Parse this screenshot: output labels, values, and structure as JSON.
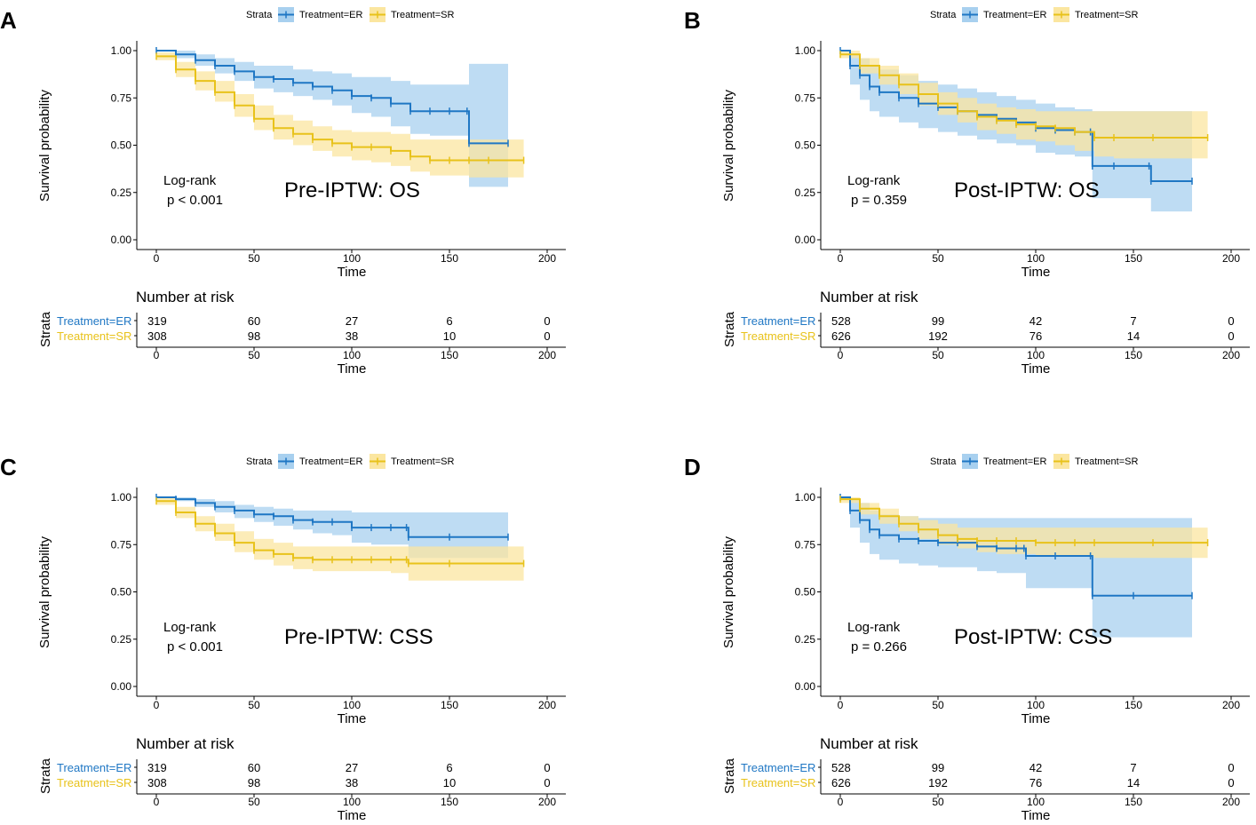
{
  "colors": {
    "er": "#1f77c4",
    "sr": "#e8c21a",
    "er_band": "#a8d0ef",
    "sr_band": "#fbe6a0"
  },
  "legend": {
    "title": "Strata",
    "er": "Treatment=ER",
    "sr": "Treatment=SR"
  },
  "risk_table": {
    "title": "Number at risk",
    "ylabel": "Strata",
    "xlabel": "Time"
  },
  "chart_data": [
    {
      "panel": "A",
      "type": "line",
      "title": "Pre-IPTW: OS",
      "annotation": {
        "line1": "Log-rank",
        "line2": "p < 0.001"
      },
      "xlabel": "Time",
      "ylabel": "Survival probability",
      "xlim": [
        0,
        200
      ],
      "ylim": [
        0,
        1
      ],
      "x_ticks": [
        "0",
        "50",
        "100",
        "150",
        "200"
      ],
      "y_ticks": [
        "0.00",
        "0.25",
        "0.50",
        "0.75",
        "1.00"
      ],
      "series": [
        {
          "name": "Treatment=ER",
          "x": [
            0,
            10,
            20,
            30,
            40,
            50,
            60,
            70,
            80,
            90,
            100,
            110,
            120,
            130,
            140,
            150,
            159,
            160,
            180
          ],
          "y": [
            1.0,
            0.98,
            0.95,
            0.92,
            0.89,
            0.86,
            0.85,
            0.83,
            0.81,
            0.79,
            0.76,
            0.75,
            0.72,
            0.68,
            0.68,
            0.68,
            0.68,
            0.51,
            0.51
          ],
          "lower": [
            1.0,
            0.96,
            0.92,
            0.88,
            0.84,
            0.8,
            0.78,
            0.76,
            0.74,
            0.71,
            0.67,
            0.65,
            0.6,
            0.56,
            0.55,
            0.55,
            0.55,
            0.28,
            0.28
          ],
          "upper": [
            1.0,
            1.0,
            0.98,
            0.96,
            0.94,
            0.92,
            0.92,
            0.9,
            0.89,
            0.88,
            0.86,
            0.86,
            0.84,
            0.82,
            0.82,
            0.82,
            0.82,
            0.93,
            0.93
          ]
        },
        {
          "name": "Treatment=SR",
          "x": [
            0,
            10,
            20,
            30,
            40,
            50,
            60,
            70,
            80,
            90,
            100,
            110,
            120,
            130,
            140,
            150,
            160,
            170,
            188
          ],
          "y": [
            0.97,
            0.9,
            0.84,
            0.78,
            0.71,
            0.64,
            0.59,
            0.56,
            0.53,
            0.51,
            0.49,
            0.49,
            0.47,
            0.44,
            0.42,
            0.42,
            0.42,
            0.42,
            0.42
          ],
          "lower": [
            0.95,
            0.86,
            0.79,
            0.73,
            0.65,
            0.58,
            0.53,
            0.5,
            0.47,
            0.44,
            0.42,
            0.41,
            0.39,
            0.36,
            0.34,
            0.34,
            0.33,
            0.33,
            0.33
          ],
          "upper": [
            0.99,
            0.94,
            0.89,
            0.84,
            0.77,
            0.71,
            0.66,
            0.63,
            0.6,
            0.58,
            0.57,
            0.57,
            0.56,
            0.53,
            0.53,
            0.53,
            0.53,
            0.53,
            0.53
          ]
        }
      ],
      "risk": {
        "times": [
          "0",
          "50",
          "100",
          "150",
          "200"
        ],
        "er": [
          "319",
          "60",
          "27",
          "6",
          "0"
        ],
        "sr": [
          "308",
          "98",
          "38",
          "10",
          "0"
        ]
      }
    },
    {
      "panel": "B",
      "type": "line",
      "title": "Post-IPTW: OS",
      "annotation": {
        "line1": "Log-rank",
        "line2": "p = 0.359"
      },
      "xlabel": "Time",
      "ylabel": "Survival probability",
      "xlim": [
        0,
        200
      ],
      "ylim": [
        0,
        1
      ],
      "x_ticks": [
        "0",
        "50",
        "100",
        "150",
        "200"
      ],
      "y_ticks": [
        "0.00",
        "0.25",
        "0.50",
        "0.75",
        "1.00"
      ],
      "series": [
        {
          "name": "Treatment=ER",
          "x": [
            0,
            5,
            10,
            15,
            20,
            30,
            40,
            50,
            60,
            70,
            80,
            90,
            100,
            110,
            120,
            128,
            129,
            140,
            158,
            159,
            180
          ],
          "y": [
            1.0,
            0.92,
            0.87,
            0.81,
            0.78,
            0.75,
            0.72,
            0.7,
            0.68,
            0.66,
            0.64,
            0.62,
            0.59,
            0.58,
            0.57,
            0.57,
            0.39,
            0.39,
            0.39,
            0.31,
            0.31
          ],
          "lower": [
            1.0,
            0.82,
            0.74,
            0.68,
            0.65,
            0.62,
            0.59,
            0.57,
            0.55,
            0.53,
            0.51,
            0.5,
            0.46,
            0.45,
            0.44,
            0.44,
            0.22,
            0.22,
            0.22,
            0.15,
            0.15
          ],
          "upper": [
            1.0,
            0.98,
            0.96,
            0.92,
            0.9,
            0.87,
            0.84,
            0.82,
            0.8,
            0.78,
            0.76,
            0.74,
            0.72,
            0.7,
            0.69,
            0.69,
            0.68,
            0.68,
            0.68,
            0.68,
            0.68
          ]
        },
        {
          "name": "Treatment=SR",
          "x": [
            0,
            10,
            20,
            30,
            40,
            50,
            60,
            70,
            80,
            90,
            100,
            110,
            120,
            130,
            140,
            160,
            188
          ],
          "y": [
            0.98,
            0.92,
            0.87,
            0.82,
            0.77,
            0.72,
            0.68,
            0.65,
            0.63,
            0.61,
            0.6,
            0.59,
            0.57,
            0.54,
            0.54,
            0.54,
            0.54
          ],
          "lower": [
            0.96,
            0.88,
            0.82,
            0.77,
            0.71,
            0.66,
            0.62,
            0.58,
            0.56,
            0.53,
            0.52,
            0.5,
            0.47,
            0.44,
            0.43,
            0.43,
            0.43
          ],
          "upper": [
            1.0,
            0.96,
            0.92,
            0.88,
            0.83,
            0.78,
            0.75,
            0.72,
            0.7,
            0.69,
            0.68,
            0.68,
            0.68,
            0.68,
            0.68,
            0.68,
            0.68
          ]
        }
      ],
      "risk": {
        "times": [
          "0",
          "50",
          "100",
          "150",
          "200"
        ],
        "er": [
          "528",
          "99",
          "42",
          "7",
          "0"
        ],
        "sr": [
          "626",
          "192",
          "76",
          "14",
          "0"
        ]
      }
    },
    {
      "panel": "C",
      "type": "line",
      "title": "Pre-IPTW: CSS",
      "annotation": {
        "line1": "Log-rank",
        "line2": "p < 0.001"
      },
      "xlabel": "Time",
      "ylabel": "Survival probability",
      "xlim": [
        0,
        200
      ],
      "ylim": [
        0,
        1
      ],
      "x_ticks": [
        "0",
        "50",
        "100",
        "150",
        "200"
      ],
      "y_ticks": [
        "0.00",
        "0.25",
        "0.50",
        "0.75",
        "1.00"
      ],
      "series": [
        {
          "name": "Treatment=ER",
          "x": [
            0,
            10,
            20,
            30,
            40,
            50,
            60,
            70,
            80,
            90,
            100,
            110,
            120,
            128,
            129,
            150,
            180
          ],
          "y": [
            1.0,
            0.99,
            0.97,
            0.95,
            0.93,
            0.91,
            0.9,
            0.88,
            0.87,
            0.87,
            0.84,
            0.84,
            0.84,
            0.84,
            0.79,
            0.79,
            0.79
          ],
          "lower": [
            1.0,
            0.98,
            0.95,
            0.92,
            0.89,
            0.87,
            0.85,
            0.83,
            0.81,
            0.8,
            0.76,
            0.75,
            0.75,
            0.75,
            0.68,
            0.68,
            0.68
          ],
          "upper": [
            1.0,
            1.0,
            0.99,
            0.98,
            0.96,
            0.95,
            0.94,
            0.93,
            0.93,
            0.93,
            0.92,
            0.92,
            0.92,
            0.92,
            0.92,
            0.92,
            0.92
          ]
        },
        {
          "name": "Treatment=SR",
          "x": [
            0,
            10,
            20,
            30,
            40,
            50,
            60,
            70,
            80,
            90,
            100,
            110,
            120,
            128,
            129,
            150,
            188
          ],
          "y": [
            0.98,
            0.92,
            0.86,
            0.81,
            0.76,
            0.72,
            0.7,
            0.68,
            0.67,
            0.67,
            0.67,
            0.67,
            0.67,
            0.67,
            0.65,
            0.65,
            0.65
          ],
          "lower": [
            0.96,
            0.89,
            0.82,
            0.77,
            0.71,
            0.67,
            0.64,
            0.62,
            0.61,
            0.61,
            0.61,
            0.61,
            0.6,
            0.6,
            0.56,
            0.56,
            0.56
          ],
          "upper": [
            1.0,
            0.95,
            0.9,
            0.86,
            0.82,
            0.78,
            0.76,
            0.74,
            0.74,
            0.74,
            0.74,
            0.74,
            0.74,
            0.74,
            0.74,
            0.74,
            0.74
          ]
        }
      ],
      "risk": {
        "times": [
          "0",
          "50",
          "100",
          "150",
          "200"
        ],
        "er": [
          "319",
          "60",
          "27",
          "6",
          "0"
        ],
        "sr": [
          "308",
          "98",
          "38",
          "10",
          "0"
        ]
      }
    },
    {
      "panel": "D",
      "type": "line",
      "title": "Post-IPTW: CSS",
      "annotation": {
        "line1": "Log-rank",
        "line2": "p = 0.266"
      },
      "xlabel": "Time",
      "ylabel": "Survival probability",
      "xlim": [
        0,
        200
      ],
      "ylim": [
        0,
        1
      ],
      "x_ticks": [
        "0",
        "50",
        "100",
        "150",
        "200"
      ],
      "y_ticks": [
        "0.00",
        "0.25",
        "0.50",
        "0.75",
        "1.00"
      ],
      "series": [
        {
          "name": "Treatment=ER",
          "x": [
            0,
            5,
            10,
            15,
            20,
            30,
            40,
            50,
            60,
            70,
            80,
            90,
            94,
            95,
            110,
            128,
            129,
            150,
            180
          ],
          "y": [
            1.0,
            0.93,
            0.88,
            0.83,
            0.8,
            0.78,
            0.77,
            0.76,
            0.76,
            0.74,
            0.73,
            0.73,
            0.73,
            0.69,
            0.69,
            0.69,
            0.48,
            0.48,
            0.48
          ],
          "lower": [
            1.0,
            0.84,
            0.76,
            0.7,
            0.67,
            0.65,
            0.64,
            0.63,
            0.63,
            0.61,
            0.6,
            0.6,
            0.6,
            0.52,
            0.52,
            0.52,
            0.26,
            0.26,
            0.26
          ],
          "upper": [
            1.0,
            0.99,
            0.97,
            0.93,
            0.91,
            0.9,
            0.89,
            0.89,
            0.89,
            0.89,
            0.89,
            0.89,
            0.89,
            0.89,
            0.89,
            0.89,
            0.89,
            0.89,
            0.89
          ]
        },
        {
          "name": "Treatment=SR",
          "x": [
            0,
            10,
            20,
            30,
            40,
            50,
            60,
            70,
            80,
            90,
            100,
            110,
            120,
            130,
            160,
            188
          ],
          "y": [
            0.99,
            0.94,
            0.9,
            0.86,
            0.83,
            0.8,
            0.78,
            0.77,
            0.77,
            0.77,
            0.76,
            0.76,
            0.76,
            0.76,
            0.76,
            0.76
          ],
          "lower": [
            0.97,
            0.91,
            0.86,
            0.82,
            0.78,
            0.75,
            0.73,
            0.71,
            0.7,
            0.7,
            0.69,
            0.69,
            0.69,
            0.68,
            0.68,
            0.68
          ],
          "upper": [
            1.0,
            0.97,
            0.94,
            0.9,
            0.88,
            0.86,
            0.84,
            0.84,
            0.84,
            0.84,
            0.84,
            0.84,
            0.84,
            0.84,
            0.84,
            0.84
          ]
        }
      ],
      "risk": {
        "times": [
          "0",
          "50",
          "100",
          "150",
          "200"
        ],
        "er": [
          "528",
          "99",
          "42",
          "7",
          "0"
        ],
        "sr": [
          "626",
          "192",
          "76",
          "14",
          "0"
        ]
      }
    }
  ]
}
